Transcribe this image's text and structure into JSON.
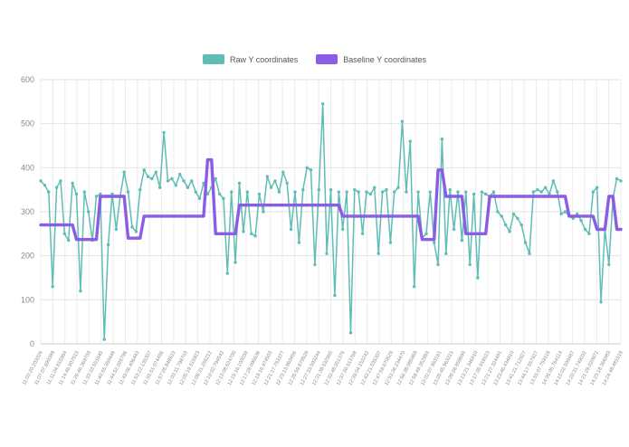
{
  "legend": {
    "raw_label": "Raw Y coordinates",
    "baseline_label": "Baseline Y coordinates"
  },
  "chart_data": {
    "type": "line",
    "title": "",
    "xlabel": "",
    "ylabel": "",
    "ylim": [
      0,
      600
    ],
    "ytick_step": 100,
    "grid": true,
    "legend_position": "top-center",
    "colors": {
      "raw": "#5fbdb6",
      "baseline": "#8b5ce6",
      "grid_h": "#e2e2e2",
      "grid_v": "#ececec",
      "axis": "#cccccc",
      "tick_text": "#8a8a8a"
    },
    "x_tick_labels": [
      "11:03:20.203026",
      "11:07:07.690399",
      "11:11:04.815964",
      "11:14:46.807915",
      "11:26:46.369700",
      "11:33:33.551645",
      "11:40:55.350448",
      "11:44:52.028796",
      "11:49:06.406443",
      "11:53:22.135307",
      "11:55:51.074456",
      "11:57:05.848523",
      "12:03:11.798703",
      "12:05:19.315923",
      "12:08:31.255212",
      "12:10:02.794542",
      "12:13:08.624700",
      "12:15:16.100039",
      "12:17:28.095636",
      "12:19:16.474503",
      "12:21:17.753377",
      "12:23:13.860456",
      "12:25:59.670529",
      "12:27:33.593244",
      "12:31:39.532965",
      "12:33:48.051376",
      "12:37:30.513768",
      "12:39:04.152242",
      "12:43:21.535307",
      "12:47:59.670529",
      "12:53:36.234470",
      "12:56:38.085969",
      "12:58:49.352993",
      "13:02:07.963161",
      "13:05:45.963315",
      "13:08:08.859690",
      "13:13:21.346910",
      "13:17:05.918523",
      "13:21:27.324491",
      "13:23:46.434910",
      "13:41:21.712927",
      "13:44:17.557927",
      "13:55:07.759118",
      "14:05:05.764114",
      "14:15:02.509487",
      "14:20:31.749032",
      "14:21:29.020972",
      "14:23:18.366983",
      "14:24:48.481518"
    ],
    "series": [
      {
        "name": "Raw Y coordinates",
        "style": "line+markers",
        "color": "#5fbdb6",
        "values": [
          370,
          360,
          345,
          130,
          355,
          370,
          250,
          235,
          365,
          340,
          120,
          345,
          300,
          235,
          335,
          340,
          10,
          225,
          340,
          260,
          335,
          390,
          345,
          265,
          255,
          350,
          395,
          380,
          375,
          390,
          355,
          480,
          370,
          375,
          360,
          385,
          370,
          355,
          370,
          345,
          330,
          365,
          340,
          355,
          375,
          340,
          330,
          160,
          345,
          185,
          365,
          255,
          345,
          250,
          245,
          340,
          300,
          380,
          355,
          370,
          345,
          390,
          365,
          260,
          345,
          230,
          350,
          400,
          395,
          180,
          350,
          545,
          205,
          350,
          110,
          345,
          260,
          345,
          25,
          350,
          345,
          250,
          345,
          340,
          355,
          205,
          345,
          350,
          230,
          345,
          355,
          505,
          345,
          460,
          130,
          345,
          240,
          250,
          345,
          230,
          180,
          465,
          205,
          350,
          260,
          345,
          235,
          345,
          180,
          340,
          150,
          345,
          340,
          335,
          345,
          300,
          290,
          270,
          255,
          295,
          285,
          270,
          230,
          205,
          345,
          350,
          345,
          355,
          340,
          370,
          345,
          295,
          300,
          290,
          285,
          295,
          280,
          260,
          250,
          345,
          355,
          95,
          260,
          180,
          330,
          375,
          370
        ]
      },
      {
        "name": "Baseline Y coordinates",
        "style": "step",
        "color": "#8b5ce6",
        "values": [
          270,
          270,
          270,
          270,
          270,
          270,
          270,
          270,
          270,
          237,
          237,
          237,
          237,
          237,
          237,
          335,
          335,
          335,
          335,
          335,
          335,
          335,
          240,
          240,
          240,
          240,
          290,
          290,
          290,
          290,
          290,
          290,
          290,
          290,
          290,
          290,
          290,
          290,
          290,
          290,
          290,
          290,
          418,
          418,
          250,
          250,
          250,
          250,
          250,
          250,
          315,
          315,
          315,
          315,
          315,
          315,
          315,
          315,
          315,
          315,
          315,
          315,
          315,
          315,
          315,
          315,
          315,
          315,
          315,
          315,
          315,
          315,
          315,
          315,
          315,
          315,
          290,
          290,
          290,
          290,
          290,
          290,
          290,
          290,
          290,
          290,
          290,
          290,
          290,
          290,
          290,
          290,
          290,
          290,
          290,
          290,
          237,
          237,
          237,
          237,
          395,
          395,
          335,
          335,
          335,
          335,
          335,
          250,
          250,
          250,
          250,
          250,
          250,
          335,
          335,
          335,
          335,
          335,
          335,
          335,
          335,
          335,
          335,
          335,
          335,
          335,
          335,
          335,
          335,
          335,
          335,
          335,
          335,
          290,
          290,
          290,
          290,
          290,
          290,
          290,
          260,
          260,
          260,
          335,
          335,
          260,
          260
        ]
      }
    ]
  }
}
